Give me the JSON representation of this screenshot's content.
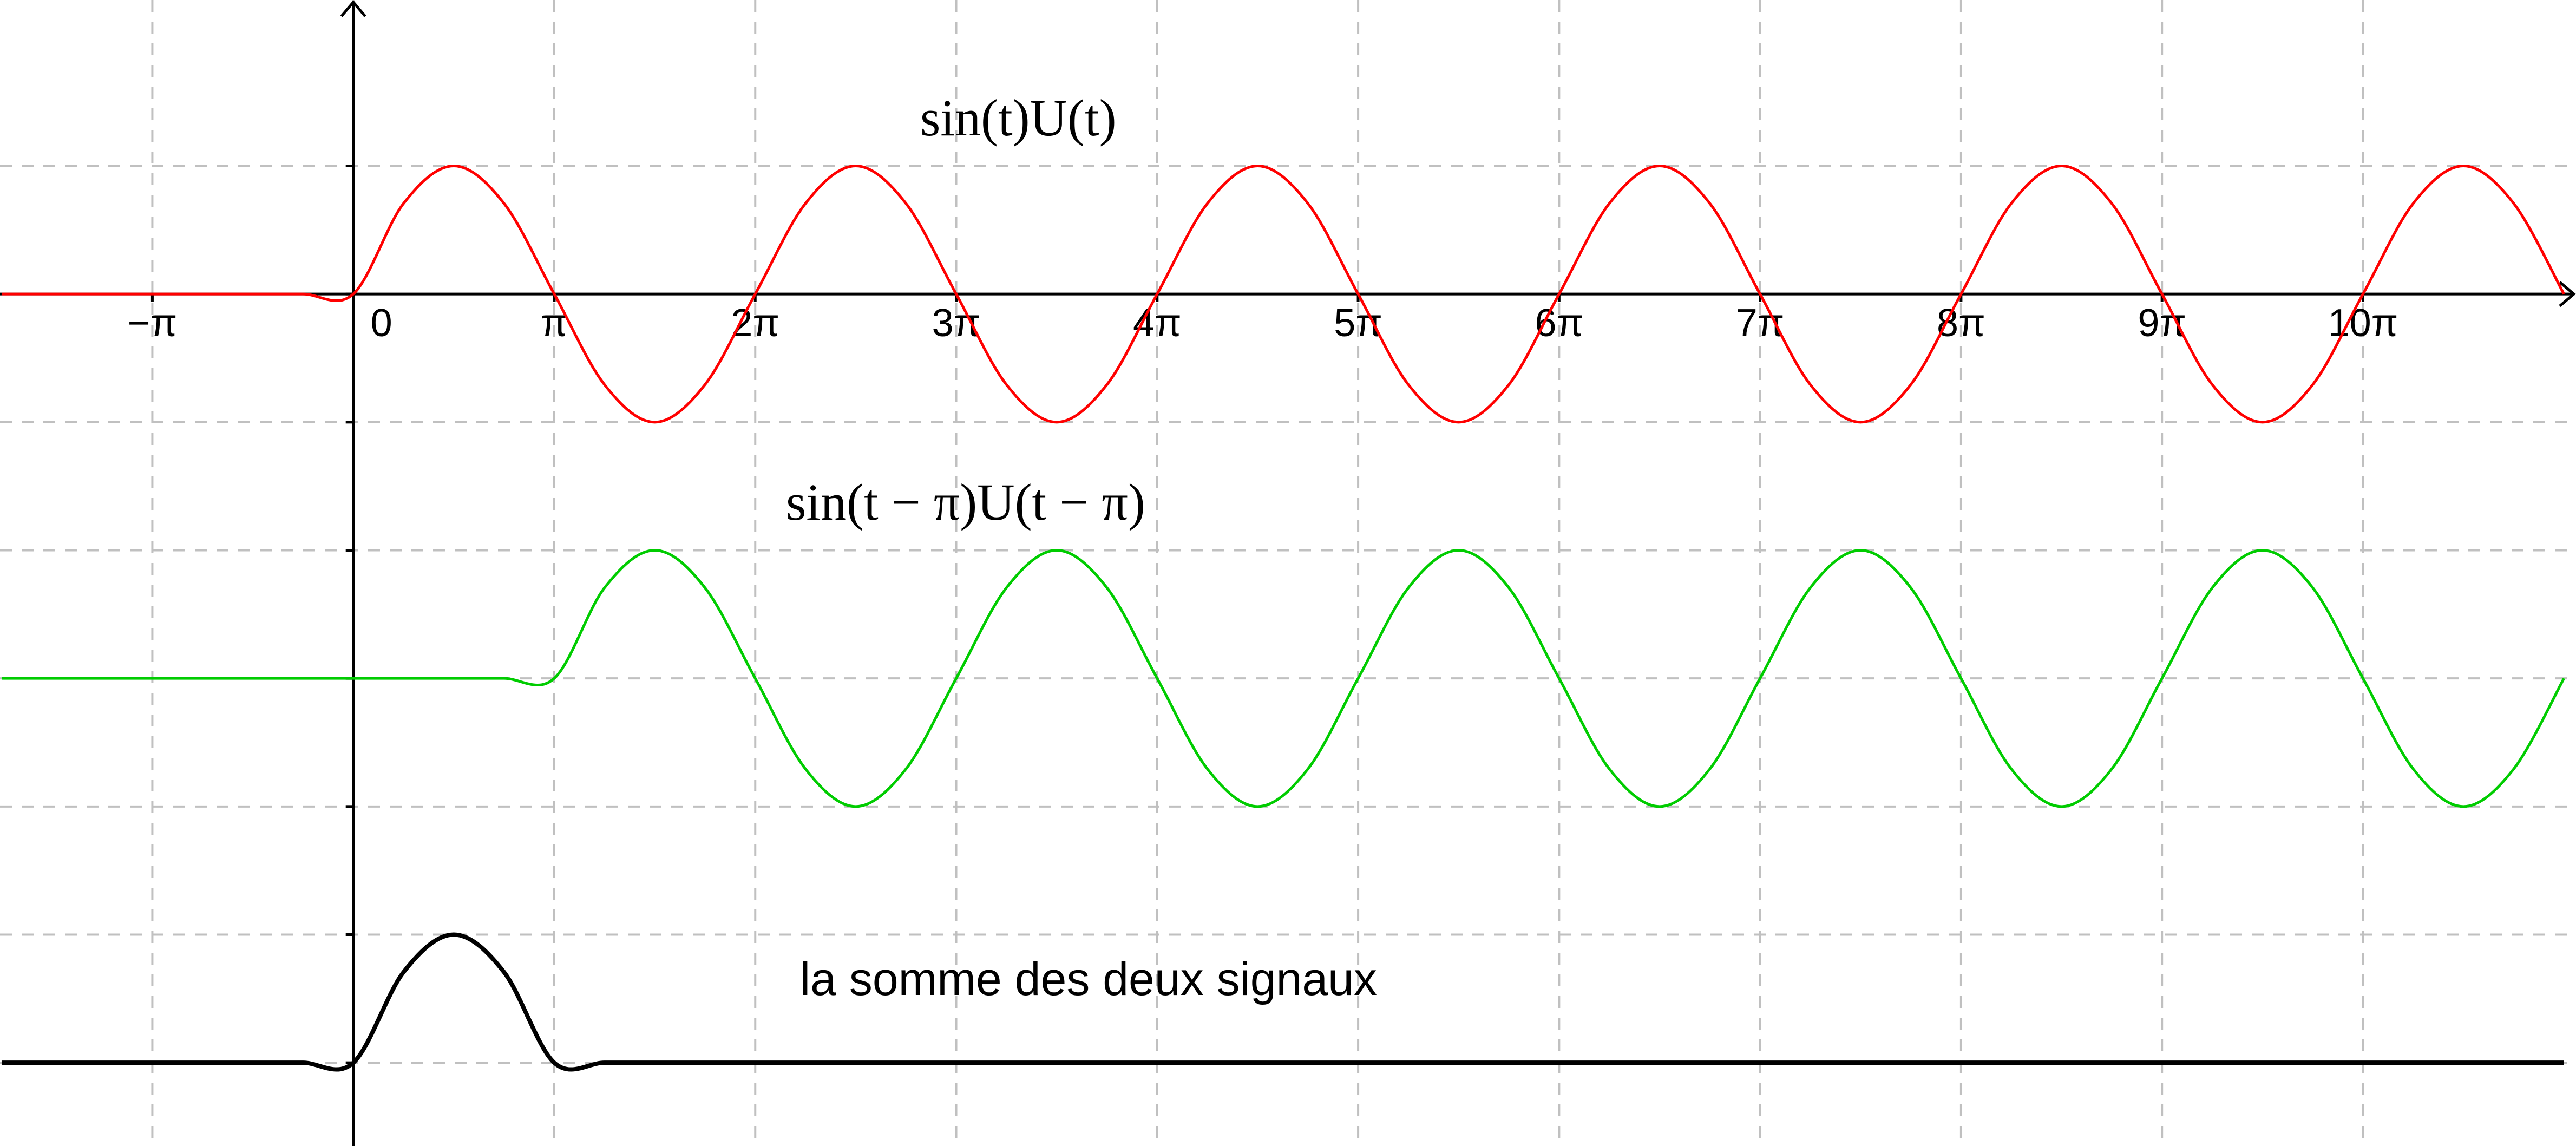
{
  "chart_data": {
    "type": "line",
    "x": [
      -1.75,
      -1.5,
      -1.25,
      -1,
      -0.75,
      -0.5,
      -0.25,
      0,
      0.25,
      0.5,
      0.75,
      1,
      1.25,
      1.5,
      1.75,
      2,
      2.25,
      2.5,
      2.75,
      3,
      3.25,
      3.5,
      3.75,
      4,
      4.25,
      4.5,
      4.75,
      5,
      5.25,
      5.5,
      5.75,
      6,
      6.25,
      6.5,
      6.75,
      7,
      7.25,
      7.5,
      7.75,
      8,
      8.25,
      8.5,
      8.75,
      9,
      9.25,
      9.5,
      9.75,
      10,
      10.25,
      10.5,
      10.75,
      11
    ],
    "series": [
      {
        "name": "sin(t)U(t)",
        "color": "#ff0000",
        "values": [
          0,
          0,
          0,
          0,
          0,
          0,
          0,
          0,
          0.7071,
          1,
          0.7071,
          0,
          -0.7071,
          -1,
          -0.7071,
          0,
          0.7071,
          1,
          0.7071,
          0,
          -0.7071,
          -1,
          -0.7071,
          0,
          0.7071,
          1,
          0.7071,
          0,
          -0.7071,
          -1,
          -0.7071,
          0,
          0.7071,
          1,
          0.7071,
          0,
          -0.7071,
          -1,
          -0.7071,
          0,
          0.7071,
          1,
          0.7071,
          0,
          -0.7071,
          -1,
          -0.7071,
          0,
          0.7071,
          1,
          0.7071,
          0
        ]
      },
      {
        "name": "sin(t − π)U(t − π)",
        "color": "#00cc00",
        "values": [
          -3,
          -3,
          -3,
          -3,
          -3,
          -3,
          -3,
          -3,
          -3,
          -3,
          -3,
          -3,
          -2.2929,
          -2,
          -2.2929,
          -3,
          -3.7071,
          -4,
          -3.7071,
          -3,
          -2.2929,
          -2,
          -2.2929,
          -3,
          -3.7071,
          -4,
          -3.7071,
          -3,
          -2.2929,
          -2,
          -2.2929,
          -3,
          -3.7071,
          -4,
          -3.7071,
          -3,
          -2.2929,
          -2,
          -2.2929,
          -3,
          -3.7071,
          -4,
          -3.7071,
          -3,
          -2.2929,
          -2,
          -2.2929,
          -3,
          -3.7071,
          -4,
          -3.7071,
          -3
        ]
      },
      {
        "name": "la somme des deux signaux",
        "color": "#000000",
        "values": [
          -6,
          -6,
          -6,
          -6,
          -6,
          -6,
          -6,
          -6,
          -5.2929,
          -5,
          -5.2929,
          -6,
          -6,
          -6,
          -6,
          -6,
          -6,
          -6,
          -6,
          -6,
          -6,
          -6,
          -6,
          -6,
          -6,
          -6,
          -6,
          -6,
          -6,
          -6,
          -6,
          -6,
          -6,
          -6,
          -6,
          -6,
          -6,
          -6,
          -6,
          -6,
          -6,
          -6,
          -6,
          -6,
          -6,
          -6,
          -6,
          -6,
          -6,
          -6,
          -6,
          -6
        ]
      }
    ],
    "xlim": [
      -1.758,
      11.06
    ],
    "ylim": [
      -6.65,
      2.295
    ],
    "xticks": [
      {
        "value": -1,
        "label": "−π"
      },
      0,
      {
        "value": 1,
        "label": "π"
      },
      {
        "value": 2,
        "label": "2π"
      },
      {
        "value": 3,
        "label": "3π"
      },
      {
        "value": 4,
        "label": "4π"
      },
      {
        "value": 5,
        "label": "5π"
      },
      {
        "value": 6,
        "label": "6π"
      },
      {
        "value": 7,
        "label": "7π"
      },
      {
        "value": 8,
        "label": "8π"
      },
      {
        "value": 9,
        "label": "9π"
      },
      {
        "value": 10,
        "label": "10π"
      }
    ],
    "yticks": [
      -6,
      -5,
      -4,
      -3,
      -2,
      -1,
      0,
      1
    ],
    "grid": true
  }
}
